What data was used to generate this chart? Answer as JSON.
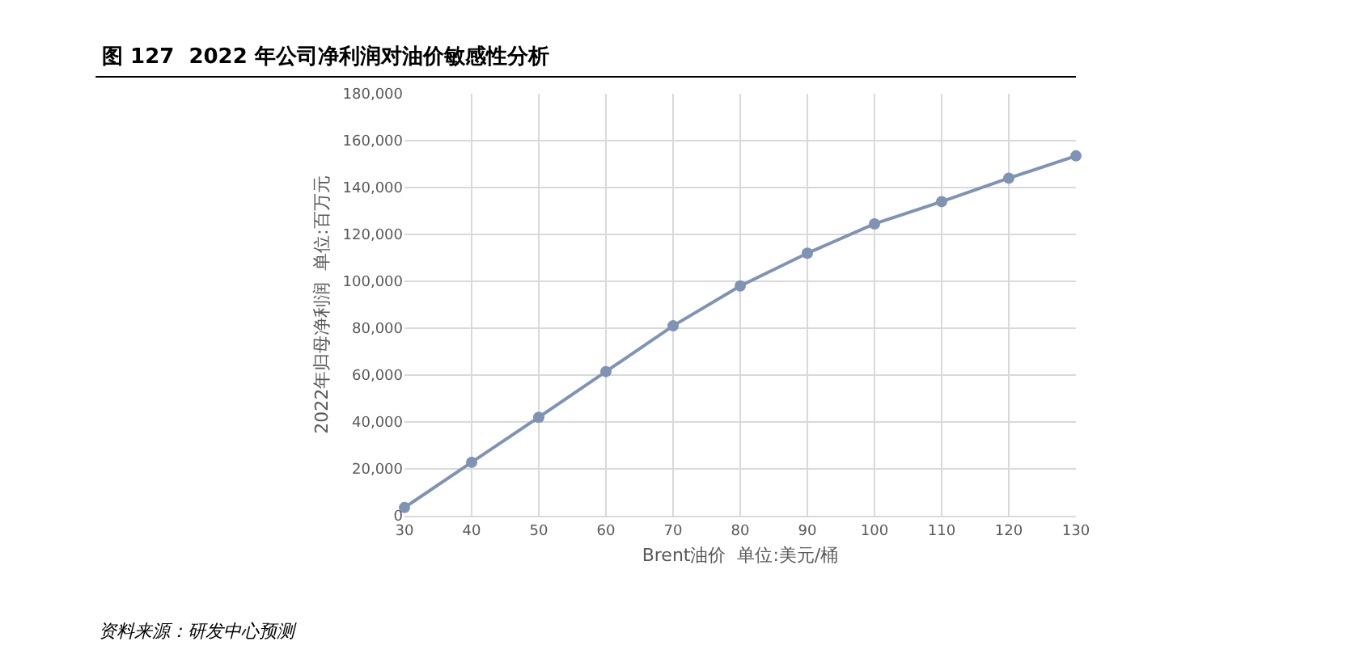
{
  "chart_data": {
    "type": "line",
    "title": "图 127  2022 年公司净利润对油价敏感性分析",
    "xlabel": "Brent油价  单位:美元/桶",
    "ylabel": "2022年归母净利润  单位:百万元",
    "annotations": [
      "资料来源：研发中心预测"
    ],
    "x": [
      30,
      40,
      50,
      60,
      70,
      80,
      90,
      100,
      110,
      120,
      130
    ],
    "series": [
      {
        "color": "#7f93b4",
        "values": [
          3500,
          22800,
          42000,
          61500,
          81000,
          98000,
          112000,
          124500,
          134000,
          144000,
          153500
        ]
      }
    ],
    "xlim": [
      30,
      130
    ],
    "xticks": [
      30,
      40,
      50,
      60,
      70,
      80,
      90,
      100,
      110,
      120,
      130
    ],
    "ylim": [
      0,
      180000
    ],
    "yticks": [
      {
        "value": 0,
        "label": "0"
      },
      {
        "value": 20000,
        "label": "20,000"
      },
      {
        "value": 40000,
        "label": "40,000"
      },
      {
        "value": 60000,
        "label": "60,000"
      },
      {
        "value": 80000,
        "label": "80,000"
      },
      {
        "value": 100000,
        "label": "100,000"
      },
      {
        "value": 120000,
        "label": "120,000"
      },
      {
        "value": 140000,
        "label": "140,000"
      },
      {
        "value": 160000,
        "label": "160,000"
      },
      {
        "value": 180000,
        "label": "180,000"
      }
    ],
    "grid": true,
    "marker": "circle",
    "line_style": "solid"
  }
}
